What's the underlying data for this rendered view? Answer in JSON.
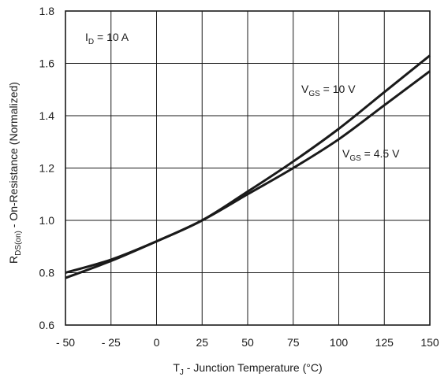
{
  "chart_data": {
    "type": "line",
    "xlabel": {
      "main": "T",
      "sub": "J",
      "rest": " - Junction Temperature (°C)"
    },
    "ylabel": {
      "main": "R",
      "sub": "DS(on)",
      "rest": " - On-Resistance (Normalized)"
    },
    "xlim": [
      -50,
      150
    ],
    "ylim": [
      0.6,
      1.8
    ],
    "xticks": [
      -50,
      -25,
      0,
      25,
      50,
      75,
      100,
      125,
      150
    ],
    "xtick_labels": [
      "- 50",
      "- 25",
      "0",
      "25",
      "50",
      "75",
      "100",
      "125",
      "150"
    ],
    "yticks": [
      0.6,
      0.8,
      1.0,
      1.2,
      1.4,
      1.6,
      1.8
    ],
    "ytick_labels": [
      "0.6",
      "0.8",
      "1.0",
      "1.2",
      "1.4",
      "1.6",
      "1.8"
    ],
    "grid": true,
    "annotations": [
      {
        "main": "I",
        "sub": "D",
        "rest": " = 10 A"
      },
      {
        "main": "V",
        "sub": "GS",
        "rest": " = 10 V"
      },
      {
        "main": "V",
        "sub": "GS",
        "rest": " = 4.5 V"
      }
    ],
    "series": [
      {
        "x": [
          -50,
          -25,
          0,
          25,
          50,
          75,
          100,
          125,
          150
        ],
        "values": [
          0.78,
          0.845,
          0.92,
          1.0,
          1.11,
          1.225,
          1.35,
          1.49,
          1.63
        ]
      },
      {
        "x": [
          -50,
          -25,
          0,
          25,
          50,
          75,
          100,
          125,
          150
        ],
        "values": [
          0.8,
          0.85,
          0.92,
          1.0,
          1.1,
          1.2,
          1.31,
          1.44,
          1.57
        ]
      }
    ],
    "line_color": "#1a1a1a"
  }
}
